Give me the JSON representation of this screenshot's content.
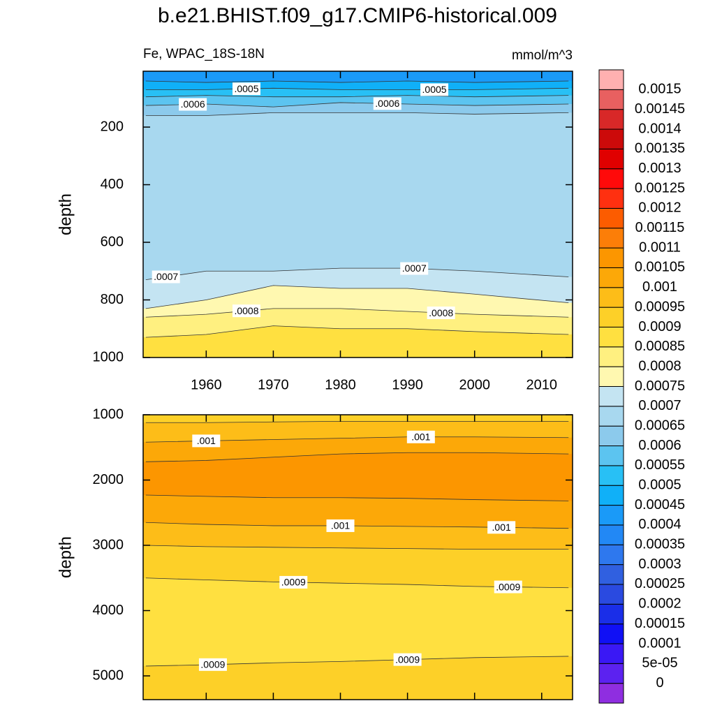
{
  "title": "b.e21.BHIST.f09_g17.CMIP6-historical.009",
  "colorbar": {
    "ticks": [
      0,
      {
        "value": 5e-05,
        "label": "5e-05"
      },
      0.0001,
      0.00015,
      0.0002,
      0.00025,
      0.0003,
      0.00035,
      0.0004,
      0.00045,
      0.0005,
      0.00055,
      0.0006,
      0.00065,
      0.0007,
      0.00075,
      0.0008,
      0.00085,
      0.0009,
      0.00095,
      0.001,
      0.00105,
      0.0011,
      0.00115,
      0.0012,
      0.00125,
      0.0013,
      0.00135,
      0.0014,
      0.00145,
      0.0015
    ],
    "colors": [
      "#8f2ee0",
      "#5c22f0",
      "#3a18f5",
      "#1010f5",
      "#1a2ee8",
      "#2a4ae0",
      "#3060e0",
      "#2e78ee",
      "#2288f5",
      "#1a9af8",
      "#10b0f8",
      "#28c0f5",
      "#5cc4f0",
      "#8ccaec",
      "#a8d8ef",
      "#c4e4f2",
      "#fff8b0",
      "#fff080",
      "#ffe040",
      "#fdd028",
      "#fdbd18",
      "#fca808",
      "#fc9600",
      "#fc7e08",
      "#fc5c00",
      "#ff3010",
      "#ff0a0a",
      "#e00000",
      "#cc0a0a",
      "#d82828",
      "#e86060",
      "#ffb0b0"
    ]
  },
  "chart_data": [
    {
      "type": "contour",
      "subtitle": "Fe, WPAC_18S-18N",
      "units": "mmol/m^3",
      "ylabel": "depth",
      "x": [
        1951,
        1960,
        1970,
        1980,
        1990,
        2000,
        2014
      ],
      "xlim": [
        1950.6,
        2014.6
      ],
      "xticks": [
        1960,
        1970,
        1980,
        1990,
        2000,
        2010
      ],
      "ylim": [
        6,
        1000
      ],
      "yticks": [
        200,
        400,
        600,
        800,
        1000
      ],
      "y_reversed": true,
      "show_xtick_labels": true,
      "base_fill": 0.0004,
      "contours": [
        {
          "level": 0.00045,
          "fill_below": 0.00045,
          "depths": [
            40,
            45,
            40,
            45,
            40,
            45,
            40
          ]
        },
        {
          "level": 0.0005,
          "fill_below": 0.0005,
          "depths": [
            70,
            70,
            65,
            70,
            70,
            70,
            65
          ],
          "label": ".0005",
          "label_x": [
            1966,
            1994
          ]
        },
        {
          "level": 0.00055,
          "fill_below": 0.00055,
          "depths": [
            95,
            90,
            95,
            95,
            90,
            95,
            90
          ]
        },
        {
          "level": 0.0006,
          "fill_below": 0.0006,
          "depths": [
            125,
            120,
            130,
            115,
            120,
            125,
            120
          ],
          "label": ".0006",
          "label_x": [
            1958,
            1987
          ]
        },
        {
          "level": 0.00065,
          "fill_below": 0.00065,
          "depths": [
            160,
            160,
            150,
            150,
            150,
            155,
            150
          ]
        },
        {
          "level": 0.0007,
          "fill_below": 0.0007,
          "depths": [
            730,
            700,
            700,
            690,
            690,
            700,
            720
          ],
          "label": ".0007",
          "label_x": [
            1954,
            1991
          ]
        },
        {
          "level": 0.00075,
          "fill_below": 0.00075,
          "depths": [
            830,
            800,
            750,
            760,
            760,
            780,
            810
          ]
        },
        {
          "level": 0.0008,
          "fill_below": 0.0008,
          "depths": [
            860,
            850,
            830,
            830,
            840,
            850,
            860
          ],
          "label": ".0008",
          "label_x": [
            1966,
            1995
          ]
        },
        {
          "level": 0.00085,
          "fill_below": 0.00085,
          "depths": [
            930,
            920,
            890,
            900,
            900,
            910,
            920
          ]
        }
      ]
    },
    {
      "type": "contour",
      "ylabel": "depth",
      "x": [
        1951,
        1960,
        1970,
        1980,
        1990,
        2000,
        2014
      ],
      "xlim": [
        1950.6,
        2014.6
      ],
      "xticks": [
        1960,
        1970,
        1980,
        1990,
        2000,
        2010
      ],
      "ylim": [
        1000,
        5364
      ],
      "yticks": [
        1000,
        2000,
        3000,
        4000,
        5000
      ],
      "y_reversed": true,
      "show_xtick_labels": false,
      "base_fill": 0.0009,
      "contours": [
        {
          "level": 0.00095,
          "fill_below": 0.00095,
          "depths": [
            1120,
            1120,
            1110,
            1100,
            1100,
            1100,
            1100
          ]
        },
        {
          "level": 0.001,
          "fill_below": 0.001,
          "depths": [
            1420,
            1400,
            1380,
            1360,
            1340,
            1340,
            1350
          ],
          "label": ".001",
          "label_x": [
            1960,
            1992
          ]
        },
        {
          "level": 0.00105,
          "fill_below": 0.00105,
          "depths": [
            1720,
            1700,
            1650,
            1600,
            1580,
            1580,
            1600
          ]
        },
        {
          "level": 0.00105,
          "fill_below": 0.001,
          "depths": [
            2230,
            2250,
            2270,
            2270,
            2280,
            2300,
            2320
          ]
        },
        {
          "level": 0.001,
          "fill_below": 0.00095,
          "depths": [
            2650,
            2680,
            2700,
            2700,
            2710,
            2720,
            2740
          ],
          "label": ".001",
          "label_x": [
            1980,
            2004
          ]
        },
        {
          "level": 0.00095,
          "fill_below": 0.0009,
          "depths": [
            3000,
            3020,
            3030,
            3040,
            3050,
            3060,
            3060
          ]
        },
        {
          "level": 0.0009,
          "fill_below": 0.00085,
          "depths": [
            3500,
            3530,
            3560,
            3580,
            3600,
            3630,
            3650
          ],
          "label": ".0009",
          "label_x": [
            1973,
            2005
          ]
        },
        {
          "level": 0.0009,
          "fill_below": 0.0009,
          "depths": [
            4850,
            4830,
            4800,
            4780,
            4750,
            4720,
            4700
          ],
          "label": ".0009",
          "label_x": [
            1961,
            1990
          ]
        }
      ]
    }
  ]
}
